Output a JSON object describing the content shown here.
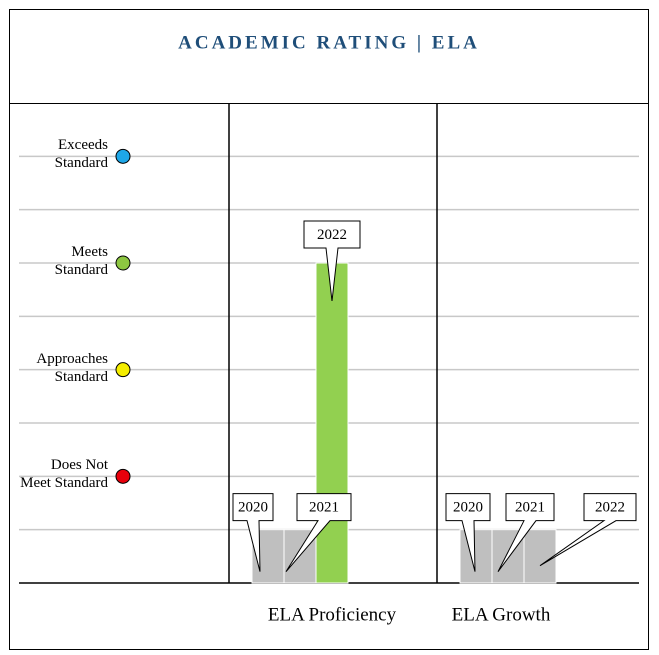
{
  "chart_data": {
    "type": "bar",
    "title": "ACADEMIC RATING | ELA",
    "ylim": [
      0,
      9
    ],
    "yticks": [
      {
        "value": 2,
        "label": "Does Not Meet Standard",
        "color": "#e8000b"
      },
      {
        "value": 4,
        "label": "Approaches Standard",
        "color": "#f5ee00"
      },
      {
        "value": 6,
        "label": "Meets Standard",
        "color": "#8dc641"
      },
      {
        "value": 8,
        "label": "Exceeds Standard",
        "color": "#1ea7e8"
      }
    ],
    "minor_yticks": [
      1,
      3,
      5,
      7
    ],
    "grid": true,
    "groups": [
      {
        "name": "ELA Proficiency",
        "categories": [
          "2020",
          "2021",
          "2022"
        ],
        "values": [
          1,
          1,
          6
        ],
        "colors": [
          "#bfbfbf",
          "#bfbfbf",
          "#92d050"
        ]
      },
      {
        "name": "ELA Growth",
        "categories": [
          "2020",
          "2021",
          "2022"
        ],
        "values": [
          1,
          1,
          1
        ],
        "colors": [
          "#bfbfbf",
          "#bfbfbf",
          "#bfbfbf"
        ]
      }
    ]
  }
}
